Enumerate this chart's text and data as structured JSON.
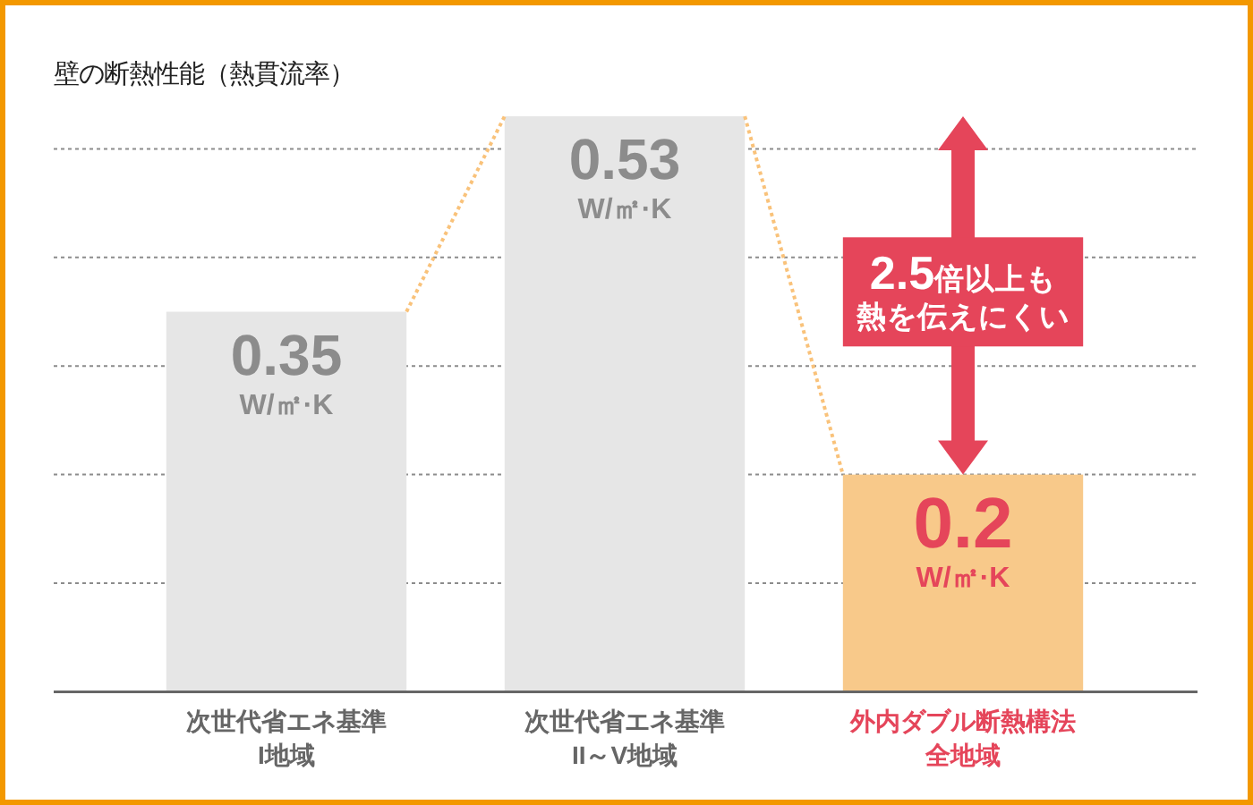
{
  "chart_data": {
    "type": "bar",
    "title": "壁の断熱性能（熱貫流率）",
    "categories": [
      "次世代省エネ基準I地域",
      "次世代省エネ基準II～V地域",
      "外内ダブル断熱構法全地域"
    ],
    "values": [
      0.35,
      0.53,
      0.2
    ],
    "colors": [
      "#e6e6e6",
      "#e6e6e6",
      "#f8c98a"
    ],
    "value_labels": [
      "0.35 W/㎡·K",
      "0.53 W/㎡·K",
      "0.2 W/㎡·K"
    ],
    "yticks": [
      {
        "value": 0.1,
        "label": null
      },
      {
        "value": 0.2,
        "label": null
      },
      {
        "value": 0.3,
        "label": null
      },
      {
        "value": 0.4,
        "label": null
      },
      {
        "value": 0.5,
        "label": null
      }
    ],
    "grid": "y",
    "tick_labels": "x",
    "annotations": [
      "2.5倍以上も熱を伝えにくい"
    ]
  }
}
